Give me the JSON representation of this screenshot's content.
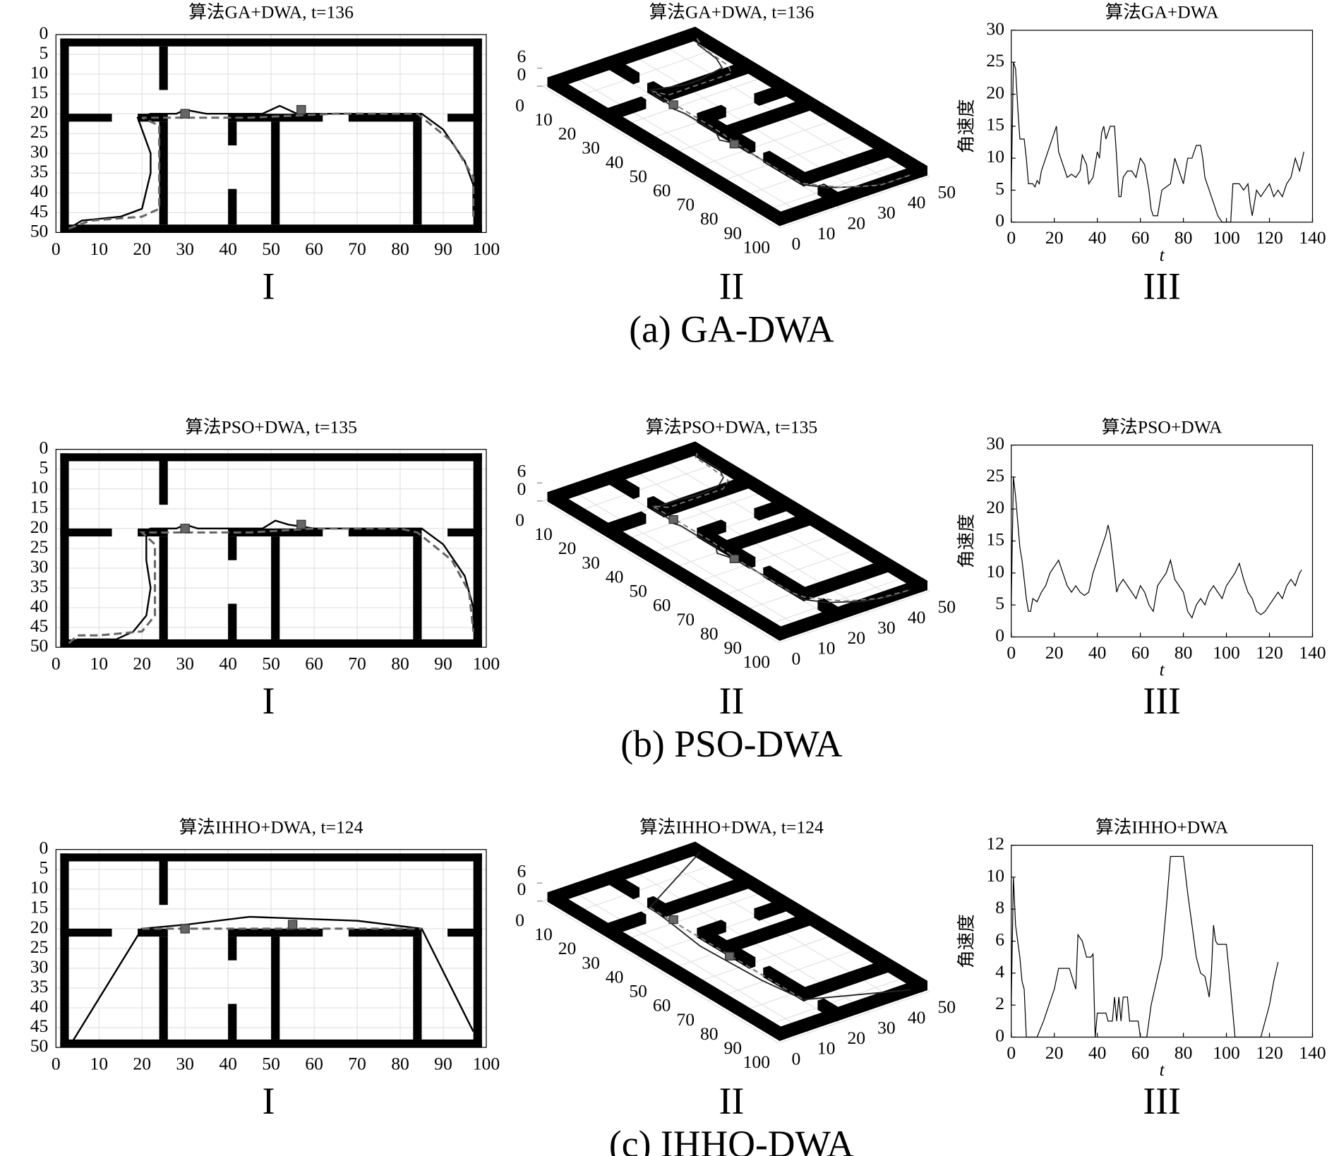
{
  "chart_data": [
    {
      "caption": "(a) GA-DWA",
      "map": {
        "type": "map",
        "title": "算法GA+DWA, t=136",
        "label": "I",
        "xlim": [
          0,
          100
        ],
        "ylim": [
          0,
          50
        ],
        "y_reverse": true,
        "grid": true,
        "xticks": [
          0,
          10,
          20,
          30,
          40,
          50,
          60,
          70,
          80,
          90,
          100
        ],
        "yticks": [
          0,
          5,
          10,
          15,
          20,
          25,
          30,
          35,
          40,
          45,
          50
        ],
        "obstacles": [
          [
            1,
            1,
            99,
            3
          ],
          [
            1,
            48,
            99,
            50
          ],
          [
            1,
            1,
            3,
            50
          ],
          [
            97,
            1,
            99,
            50
          ],
          [
            24,
            3,
            26,
            14
          ],
          [
            1,
            20,
            13,
            22
          ],
          [
            19,
            20,
            26,
            22
          ],
          [
            40,
            20,
            62,
            22
          ],
          [
            68,
            20,
            85,
            22
          ],
          [
            91,
            20,
            99,
            22
          ],
          [
            24,
            22,
            26,
            48
          ],
          [
            40,
            22,
            42,
            28
          ],
          [
            40,
            39,
            42,
            48
          ],
          [
            50,
            22,
            52,
            48
          ],
          [
            83,
            22,
            85,
            48
          ]
        ],
        "series": [
          {
            "color": "#000000",
            "dash": false,
            "x": [
              3,
              6,
              15,
              20,
              22,
              22,
              20,
              19,
              22,
              28,
              30,
              35,
              48,
              52,
              56,
              85,
              90,
              95,
              97,
              97
            ],
            "y": [
              49,
              47,
              46,
              44,
              35,
              30,
              24,
              21,
              20,
              20,
              19,
              20,
              20,
              18,
              20,
              20,
              24,
              32,
              38,
              46
            ]
          },
          {
            "color": "#666666",
            "dash": true,
            "x": [
              3,
              8,
              20,
              24,
              24,
              20,
              45,
              65,
              84,
              92,
              97,
              97
            ],
            "y": [
              49,
              47,
              46,
              44,
              23,
              21,
              21,
              20,
              20,
              27,
              36,
              46
            ]
          }
        ],
        "markers": {
          "color": "#666666",
          "x": [
            30,
            57
          ],
          "y": [
            20,
            19
          ]
        }
      },
      "map3d": {
        "type": "map3d",
        "title": "算法GA+DWA, t=136",
        "label": "II",
        "xticks": [
          0,
          10,
          20,
          30,
          40,
          50,
          60,
          70,
          80,
          90,
          100
        ],
        "yticks": [
          0,
          10,
          20,
          30,
          40,
          50
        ],
        "zticks": [
          0,
          6
        ]
      },
      "speed": {
        "type": "line",
        "title": "算法GA+DWA",
        "label": "III",
        "xlabel": "t",
        "ylabel": "角速度",
        "xlim": [
          0,
          140
        ],
        "ylim": [
          0,
          30
        ],
        "xticks": [
          0,
          20,
          40,
          60,
          80,
          100,
          120,
          140
        ],
        "yticks": [
          0,
          5,
          10,
          15,
          20,
          25,
          30
        ],
        "color": "#000000",
        "x": [
          0,
          1,
          2,
          3,
          4,
          6,
          7,
          8,
          10,
          11,
          12,
          13,
          14,
          16,
          18,
          20,
          21,
          22,
          23,
          25,
          26,
          28,
          30,
          32,
          33,
          35,
          36,
          38,
          40,
          41,
          42,
          43,
          44,
          46,
          48,
          49,
          50,
          51,
          52,
          54,
          56,
          58,
          60,
          62,
          64,
          65,
          66,
          68,
          70,
          72,
          74,
          76,
          78,
          80,
          82,
          84,
          86,
          88,
          89,
          90,
          92,
          94,
          96,
          98,
          100,
          102,
          103,
          106,
          108,
          110,
          111,
          112,
          114,
          116,
          118,
          120,
          122,
          124,
          126,
          128,
          130,
          132,
          134,
          136
        ],
        "values": [
          5,
          25,
          24,
          18,
          13,
          13,
          10,
          6,
          6,
          5.5,
          6.5,
          6,
          8,
          10,
          12,
          14,
          15,
          11,
          10,
          8,
          7,
          7.5,
          7,
          8,
          10.5,
          9,
          6,
          7,
          11,
          10,
          14,
          15,
          13,
          15,
          15,
          10,
          4,
          4,
          7,
          8,
          8,
          7,
          10,
          9,
          5,
          2,
          1,
          1,
          5,
          5.5,
          6,
          10,
          8,
          6,
          10,
          10,
          12,
          12,
          10,
          7,
          5,
          3,
          1,
          0,
          0,
          0,
          6,
          6,
          5,
          6,
          3,
          1,
          5,
          4,
          5,
          6,
          4,
          5,
          4,
          6,
          7,
          10,
          8,
          11
        ]
      }
    },
    {
      "caption": "(b) PSO-DWA",
      "map": {
        "type": "map",
        "title": "算法PSO+DWA, t=135",
        "label": "I",
        "xlim": [
          0,
          100
        ],
        "ylim": [
          0,
          50
        ],
        "y_reverse": true,
        "grid": true,
        "xticks": [
          0,
          10,
          20,
          30,
          40,
          50,
          60,
          70,
          80,
          90,
          100
        ],
        "yticks": [
          0,
          5,
          10,
          15,
          20,
          25,
          30,
          35,
          40,
          45,
          50
        ],
        "obstacles": [
          [
            1,
            1,
            99,
            3
          ],
          [
            1,
            48,
            99,
            50
          ],
          [
            1,
            1,
            3,
            50
          ],
          [
            97,
            1,
            99,
            50
          ],
          [
            24,
            3,
            26,
            14
          ],
          [
            1,
            20,
            13,
            22
          ],
          [
            19,
            20,
            26,
            22
          ],
          [
            40,
            20,
            62,
            22
          ],
          [
            68,
            20,
            85,
            22
          ],
          [
            91,
            20,
            99,
            22
          ],
          [
            24,
            22,
            26,
            48
          ],
          [
            40,
            22,
            42,
            28
          ],
          [
            40,
            39,
            42,
            48
          ],
          [
            50,
            22,
            52,
            48
          ],
          [
            83,
            22,
            85,
            48
          ]
        ],
        "series": [
          {
            "color": "#000000",
            "dash": false,
            "x": [
              3,
              5,
              14,
              18,
              21,
              22,
              21,
              21,
              20,
              22,
              28,
              30,
              33,
              48,
              51,
              54,
              60,
              85,
              90,
              95,
              97,
              97
            ],
            "y": [
              49,
              48,
              48,
              46,
              42,
              35,
              28,
              22,
              21,
              20,
              20,
              19,
              20,
              20,
              18,
              19,
              20,
              20,
              24,
              32,
              40,
              46
            ]
          },
          {
            "color": "#666666",
            "dash": true,
            "x": [
              3,
              5,
              10,
              20,
              23,
              23,
              20,
              45,
              60,
              80,
              84,
              92,
              96,
              97
            ],
            "y": [
              49,
              47,
              47,
              46,
              42,
              24,
              21,
              21,
              20,
              20,
              21,
              28,
              36,
              46
            ]
          }
        ],
        "markers": {
          "color": "#666666",
          "x": [
            30,
            57
          ],
          "y": [
            20,
            19
          ]
        }
      },
      "map3d": {
        "type": "map3d",
        "title": "算法PSO+DWA, t=135",
        "label": "II",
        "xticks": [
          0,
          10,
          20,
          30,
          40,
          50,
          60,
          70,
          80,
          90,
          100
        ],
        "yticks": [
          0,
          10,
          20,
          30,
          40,
          50
        ],
        "zticks": [
          0,
          6
        ]
      },
      "speed": {
        "type": "line",
        "title": "算法PSO+DWA",
        "label": "III",
        "xlabel": "t",
        "ylabel": "角速度",
        "xlim": [
          0,
          140
        ],
        "ylim": [
          0,
          30
        ],
        "xticks": [
          0,
          20,
          40,
          60,
          80,
          100,
          120,
          140
        ],
        "yticks": [
          0,
          5,
          10,
          15,
          20,
          25,
          30
        ],
        "color": "#000000",
        "x": [
          0,
          1,
          2,
          3,
          4,
          5,
          6,
          7,
          8,
          9,
          10,
          12,
          14,
          16,
          18,
          20,
          22,
          24,
          26,
          28,
          30,
          32,
          34,
          36,
          38,
          40,
          42,
          44,
          45,
          46,
          48,
          49,
          50,
          52,
          54,
          56,
          58,
          60,
          62,
          64,
          66,
          68,
          70,
          72,
          74,
          76,
          78,
          80,
          82,
          84,
          86,
          88,
          90,
          92,
          94,
          96,
          98,
          100,
          102,
          104,
          106,
          108,
          110,
          112,
          114,
          116,
          118,
          120,
          122,
          124,
          126,
          128,
          130,
          132,
          134,
          135
        ],
        "values": [
          5,
          25,
          22,
          18,
          14,
          12,
          9,
          6,
          4,
          4,
          6,
          5.5,
          7,
          8,
          10,
          11,
          12,
          10,
          8,
          7,
          8,
          7,
          6.5,
          7,
          10,
          12,
          14,
          16,
          17.5,
          16,
          10,
          7,
          8,
          9,
          8,
          7,
          6,
          8,
          7,
          5,
          4,
          8,
          9,
          10,
          12,
          9,
          8,
          7,
          4,
          3,
          5,
          6,
          5,
          7,
          8,
          7,
          6,
          8,
          9,
          10,
          11.5,
          9,
          7,
          6,
          4,
          3.5,
          4,
          5,
          6,
          7,
          6,
          8,
          9,
          8,
          10,
          10.5
        ]
      }
    },
    {
      "caption": "(c) IHHO-DWA",
      "map": {
        "type": "map",
        "title": "算法IHHO+DWA, t=124",
        "label": "I",
        "xlim": [
          0,
          100
        ],
        "ylim": [
          0,
          50
        ],
        "y_reverse": true,
        "grid": true,
        "xticks": [
          0,
          10,
          20,
          30,
          40,
          50,
          60,
          70,
          80,
          90,
          100
        ],
        "yticks": [
          0,
          5,
          10,
          15,
          20,
          25,
          30,
          35,
          40,
          45,
          50
        ],
        "obstacles": [
          [
            1,
            1,
            99,
            3
          ],
          [
            1,
            48,
            99,
            50
          ],
          [
            1,
            1,
            3,
            50
          ],
          [
            97,
            1,
            99,
            50
          ],
          [
            24,
            3,
            26,
            14
          ],
          [
            1,
            20,
            13,
            22
          ],
          [
            19,
            20,
            26,
            22
          ],
          [
            40,
            20,
            62,
            22
          ],
          [
            68,
            20,
            85,
            22
          ],
          [
            91,
            20,
            99,
            22
          ],
          [
            24,
            22,
            26,
            48
          ],
          [
            40,
            22,
            42,
            28
          ],
          [
            40,
            39,
            42,
            48
          ],
          [
            50,
            22,
            52,
            48
          ],
          [
            83,
            22,
            85,
            48
          ]
        ],
        "series": [
          {
            "color": "#000000",
            "dash": false,
            "x": [
              3,
              20,
              30,
              45,
              70,
              85,
              97
            ],
            "y": [
              50,
              20,
              19,
              17,
              18,
              20,
              46
            ]
          },
          {
            "color": "#666666",
            "dash": true,
            "x": [
              20,
              85
            ],
            "y": [
              20,
              20
            ]
          }
        ],
        "markers": {
          "color": "#666666",
          "x": [
            30,
            55
          ],
          "y": [
            20,
            19
          ]
        }
      },
      "map3d": {
        "type": "map3d",
        "title": "算法IHHO+DWA, t=124",
        "label": "II",
        "xticks": [
          0,
          10,
          20,
          30,
          40,
          50,
          60,
          70,
          80,
          90,
          100
        ],
        "yticks": [
          0,
          10,
          20,
          30,
          40,
          50
        ],
        "zticks": [
          0,
          6
        ]
      },
      "speed": {
        "type": "line",
        "title": "算法IHHO+DWA",
        "label": "III",
        "xlabel": "t",
        "ylabel": "角速度",
        "xlim": [
          0,
          140
        ],
        "ylim": [
          0,
          12
        ],
        "xticks": [
          0,
          20,
          40,
          60,
          80,
          100,
          120,
          140
        ],
        "yticks": [
          0,
          2,
          4,
          6,
          8,
          10,
          12
        ],
        "color": "#000000",
        "x": [
          0,
          1,
          2,
          3,
          4,
          5,
          6,
          7,
          8,
          10,
          12,
          15,
          20,
          22,
          27,
          30,
          31,
          33,
          35,
          37,
          38,
          39,
          40,
          44,
          45,
          47,
          48,
          49,
          50,
          51,
          52,
          54,
          55,
          59,
          60,
          63,
          65,
          70,
          72,
          74,
          80,
          82,
          84,
          86,
          88,
          90,
          92,
          93,
          94,
          95,
          96,
          100,
          102,
          104,
          110,
          116,
          118,
          120,
          122,
          124
        ],
        "values": [
          2,
          10,
          7,
          6,
          5,
          3.5,
          3,
          0,
          0,
          0,
          0,
          1,
          3,
          4.3,
          4.3,
          3,
          6.4,
          6,
          5,
          5,
          5.2,
          0,
          1.5,
          1.5,
          1,
          1,
          2.5,
          1,
          2.5,
          1,
          2.5,
          2.5,
          1,
          1,
          0,
          0,
          2,
          5,
          8,
          11.3,
          11.3,
          9,
          7,
          5,
          4,
          3.8,
          2.5,
          4,
          7,
          6,
          5.8,
          5.8,
          3,
          0,
          0,
          0,
          1,
          2,
          3.5,
          4.7
        ]
      }
    }
  ]
}
